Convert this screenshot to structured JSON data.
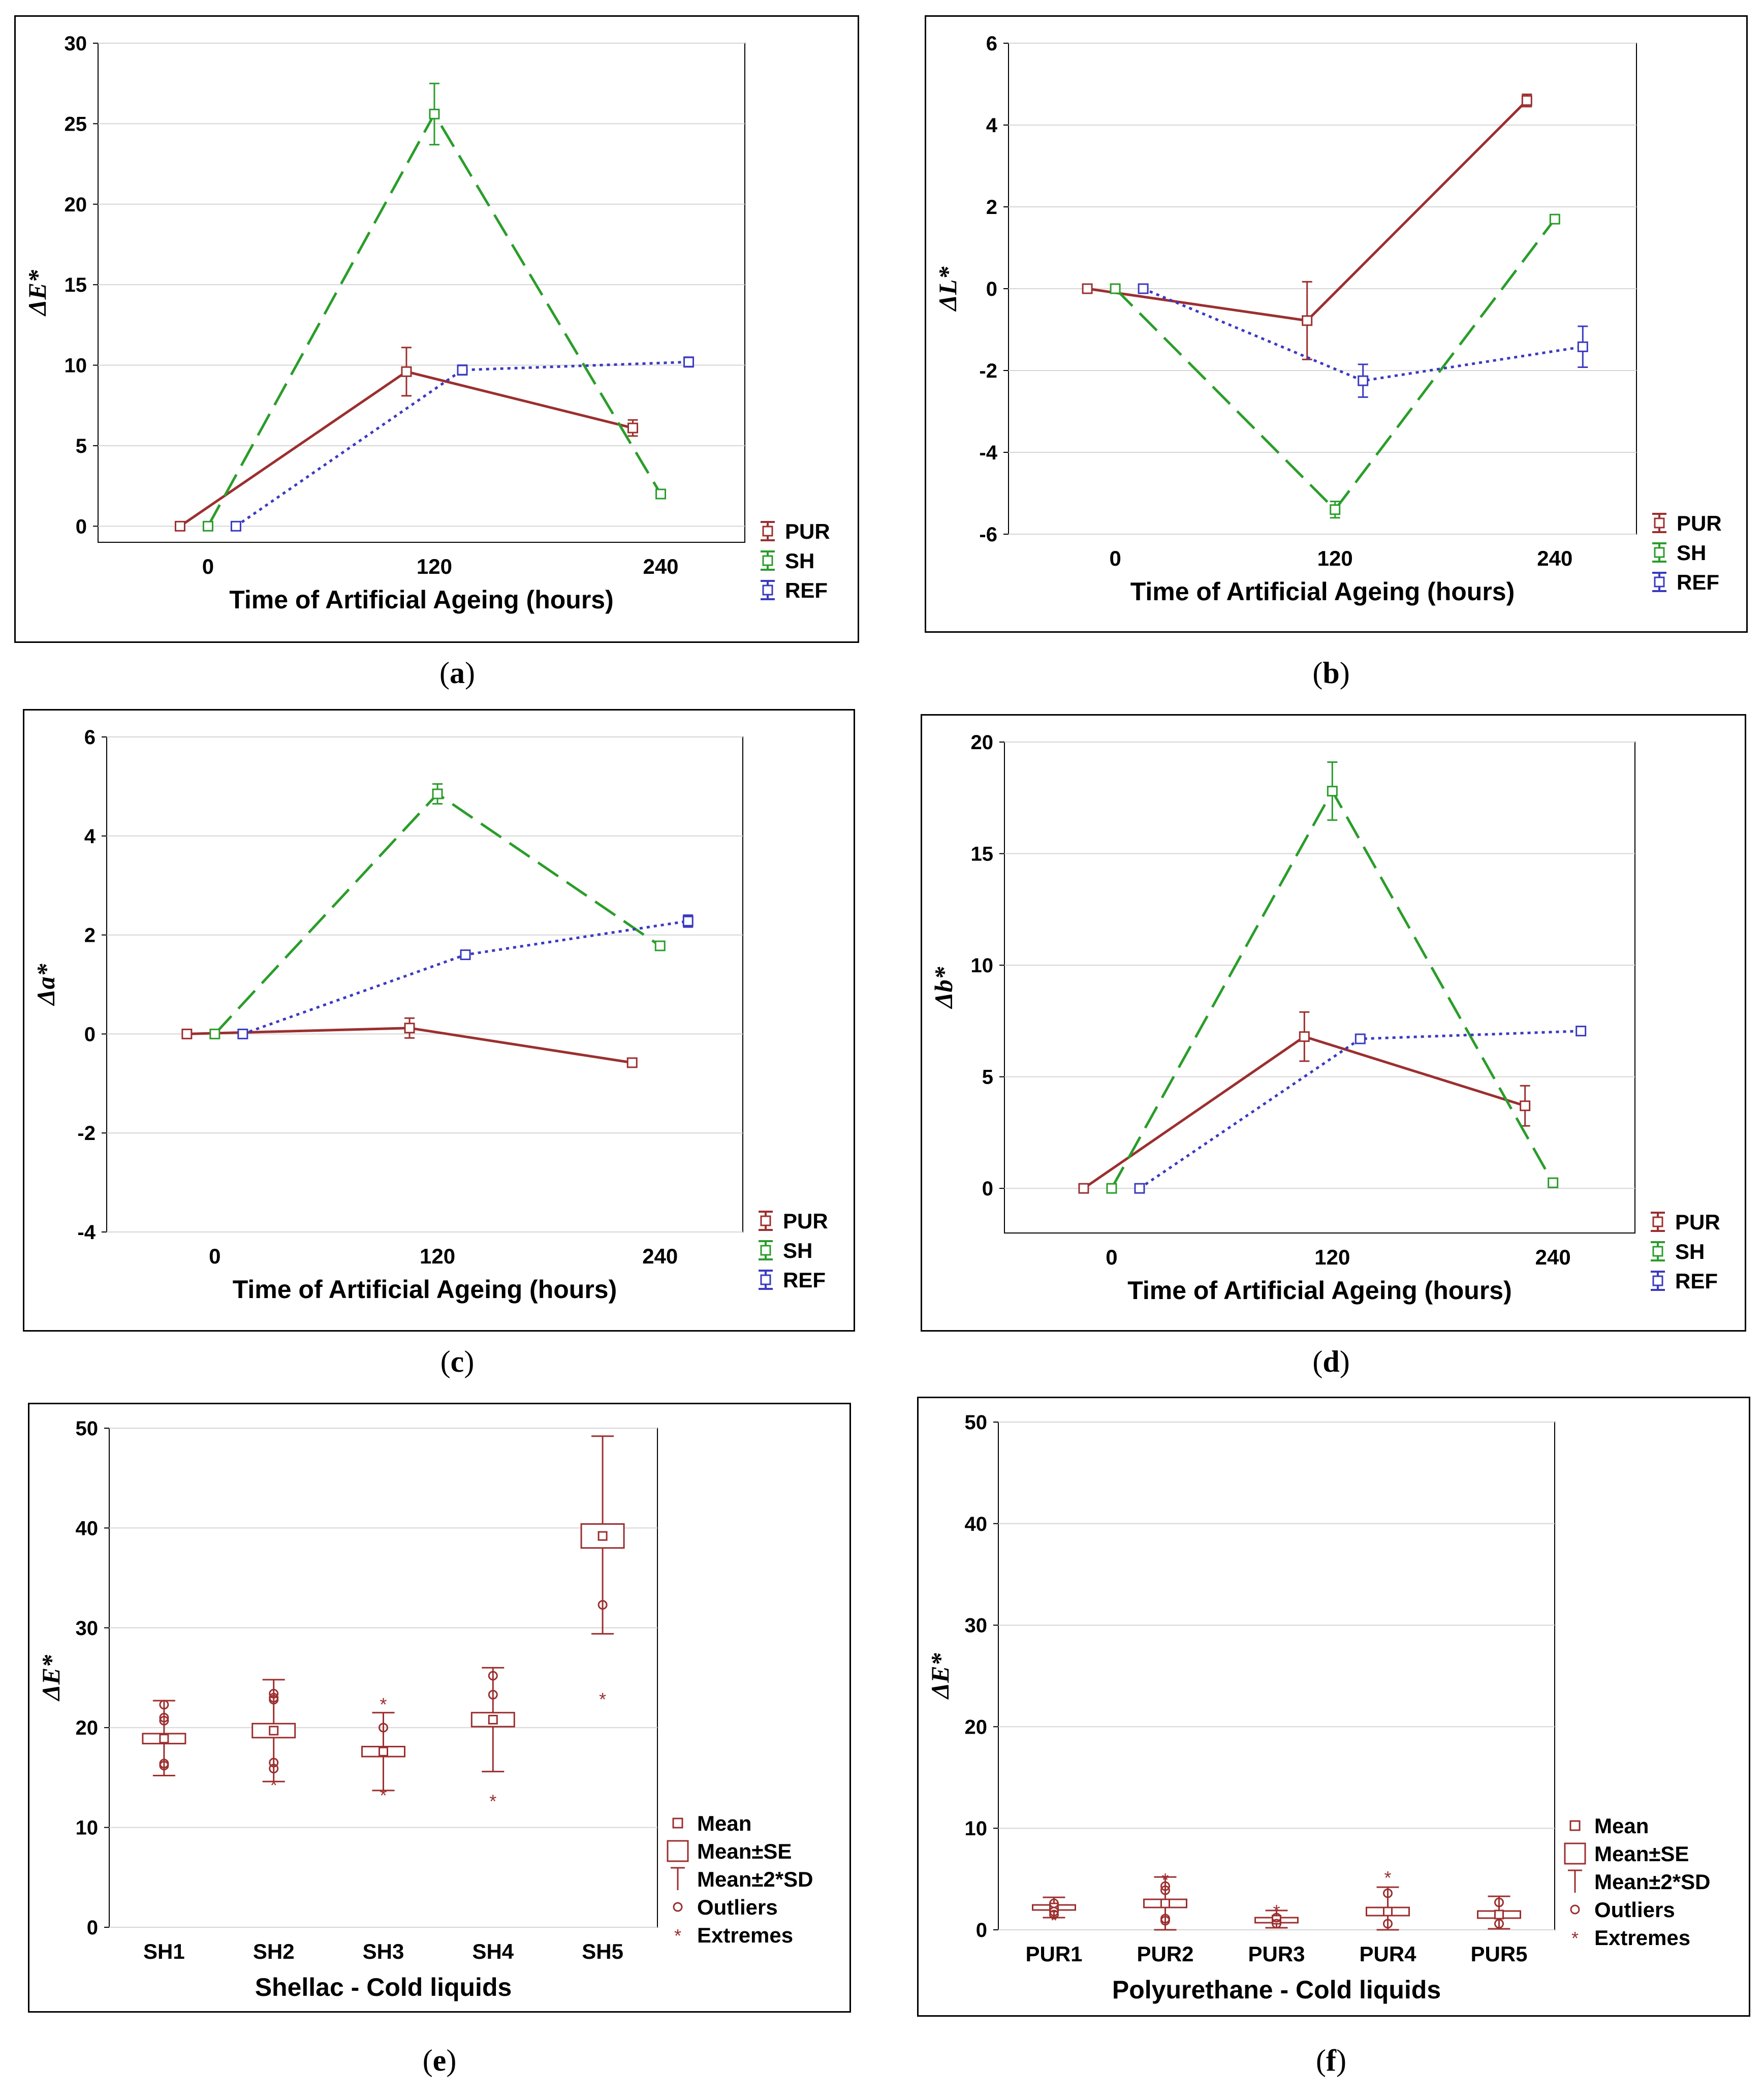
{
  "chart_data": [
    {
      "type": "line",
      "panel": "a",
      "caption_letter": "a",
      "ylabel": "ΔE*",
      "xlabel": "Time of Artificial Ageing (hours)",
      "x_ticks": [
        "0",
        "120",
        "240"
      ],
      "x": [
        0,
        120,
        240
      ],
      "y_ticks": [
        0,
        5,
        10,
        15,
        20,
        25,
        30
      ],
      "ylim": [
        -1,
        30
      ],
      "series": [
        {
          "name": "PUR",
          "color": "#9c2f2f",
          "dash": "solid",
          "values": [
            0,
            9.6,
            6.1
          ],
          "err": [
            0.15,
            1.5,
            0.5
          ]
        },
        {
          "name": "SH",
          "color": "#2a9d2a",
          "dash": "long",
          "values": [
            0,
            25.6,
            2.0
          ],
          "err": [
            0.15,
            1.9,
            0.2
          ]
        },
        {
          "name": "REF",
          "color": "#3a3ac0",
          "dash": "dot",
          "values": [
            0,
            9.7,
            10.2
          ],
          "err": [
            0.15,
            0.3,
            0.3
          ]
        }
      ]
    },
    {
      "type": "line",
      "panel": "b",
      "caption_letter": "b",
      "ylabel": "ΔL*",
      "xlabel": "Time of Artificial Ageing (hours)",
      "x_ticks": [
        "0",
        "120",
        "240"
      ],
      "x": [
        0,
        120,
        240
      ],
      "y_ticks": [
        -6,
        -4,
        -2,
        0,
        2,
        4,
        6
      ],
      "ylim": [
        -6,
        6
      ],
      "series": [
        {
          "name": "PUR",
          "color": "#9c2f2f",
          "dash": "solid",
          "values": [
            0,
            -0.78,
            4.6
          ],
          "err": [
            0.05,
            0.95,
            0.15
          ]
        },
        {
          "name": "SH",
          "color": "#2a9d2a",
          "dash": "long",
          "values": [
            0,
            -5.4,
            1.7
          ],
          "err": [
            0.05,
            0.2,
            0.1
          ]
        },
        {
          "name": "REF",
          "color": "#3a3ac0",
          "dash": "dot",
          "values": [
            0,
            -2.25,
            -1.42
          ],
          "err": [
            0.05,
            0.4,
            0.5
          ]
        }
      ]
    },
    {
      "type": "line",
      "panel": "c",
      "caption_letter": "c",
      "ylabel": "Δa*",
      "xlabel": "Time of Artificial Ageing (hours)",
      "x_ticks": [
        "0",
        "120",
        "240"
      ],
      "x": [
        0,
        120,
        240
      ],
      "y_ticks": [
        -4,
        -2,
        0,
        2,
        4,
        6
      ],
      "ylim": [
        -4,
        6
      ],
      "series": [
        {
          "name": "PUR",
          "color": "#9c2f2f",
          "dash": "solid",
          "values": [
            0,
            0.12,
            -0.58
          ],
          "err": [
            0.05,
            0.2,
            0.08
          ]
        },
        {
          "name": "SH",
          "color": "#2a9d2a",
          "dash": "long",
          "values": [
            0,
            4.85,
            1.78
          ],
          "err": [
            0.05,
            0.2,
            0.06
          ]
        },
        {
          "name": "REF",
          "color": "#3a3ac0",
          "dash": "dot",
          "values": [
            0,
            1.6,
            2.28
          ],
          "err": [
            0.05,
            0.08,
            0.12
          ]
        }
      ]
    },
    {
      "type": "line",
      "panel": "d",
      "caption_letter": "d",
      "ylabel": "Δb*",
      "xlabel": "Time of Artificial Ageing (hours)",
      "x_ticks": [
        "0",
        "120",
        "240"
      ],
      "x": [
        0,
        120,
        240
      ],
      "y_ticks": [
        0,
        5,
        10,
        15,
        20
      ],
      "ylim": [
        -2,
        20
      ],
      "series": [
        {
          "name": "PUR",
          "color": "#9c2f2f",
          "dash": "solid",
          "values": [
            0,
            6.8,
            3.7
          ],
          "err": [
            0.1,
            1.1,
            0.9
          ]
        },
        {
          "name": "SH",
          "color": "#2a9d2a",
          "dash": "long",
          "values": [
            0,
            17.8,
            0.25
          ],
          "err": [
            0.1,
            1.3,
            0.2
          ]
        },
        {
          "name": "REF",
          "color": "#3a3ac0",
          "dash": "dot",
          "values": [
            0,
            6.7,
            7.05
          ],
          "err": [
            0.1,
            0.2,
            0.2
          ]
        }
      ]
    },
    {
      "type": "box",
      "panel": "e",
      "caption_letter": "e",
      "ylabel": "ΔE*",
      "xlabel": "Shellac - Cold liquids",
      "y_ticks": [
        0,
        10,
        20,
        30,
        40,
        50
      ],
      "ylim": [
        0,
        50
      ],
      "color": "#9c2f2f",
      "categories": [
        "SH1",
        "SH2",
        "SH3",
        "SH4",
        "SH5"
      ],
      "mean": [
        18.9,
        19.7,
        17.6,
        20.8,
        39.2
      ],
      "se": [
        0.5,
        0.7,
        0.5,
        0.7,
        1.2
      ],
      "sd2_low": [
        15.2,
        14.6,
        13.7,
        15.6,
        29.4
      ],
      "sd2_high": [
        22.7,
        24.8,
        21.5,
        26.0,
        49.2
      ],
      "outliers": [
        [
          16.4,
          16.2,
          21.0,
          20.7,
          22.3
        ],
        [
          16.5,
          15.9,
          23.0,
          23.4,
          22.8
        ],
        [
          20.0
        ],
        [
          25.2,
          23.3
        ],
        [
          32.3
        ]
      ],
      "extremes": [
        [],
        [
          14.3
        ],
        [
          22.4,
          13.3
        ],
        [
          12.7
        ],
        [
          22.9
        ]
      ],
      "legend": [
        "Mean",
        "Mean±SE",
        "Mean±2*SD",
        "Outliers",
        "Extremes"
      ]
    },
    {
      "type": "box",
      "panel": "f",
      "caption_letter": "f",
      "ylabel": "ΔE*",
      "xlabel": "Polyurethane - Cold liquids",
      "y_ticks": [
        0,
        10,
        20,
        30,
        40,
        50
      ],
      "ylim": [
        0,
        50
      ],
      "color": "#9c2f2f",
      "categories": [
        "PUR1",
        "PUR2",
        "PUR3",
        "PUR4",
        "PUR5"
      ],
      "mean": [
        2.2,
        2.6,
        1.0,
        1.8,
        1.5
      ],
      "se": [
        0.25,
        0.4,
        0.2,
        0.4,
        0.35
      ],
      "sd2_low": [
        1.2,
        0.0,
        0.2,
        0.0,
        0.1
      ],
      "sd2_high": [
        3.2,
        5.2,
        1.9,
        4.2,
        3.3
      ],
      "outliers": [
        [
          1.8,
          2.6,
          1.5
        ],
        [
          3.9,
          4.3,
          1.1,
          0.9
        ],
        [
          0.6,
          1.2
        ],
        [
          3.6,
          0.6
        ],
        [
          2.7,
          0.6
        ]
      ],
      "extremes": [
        [
          1.0
        ],
        [
          5.0
        ],
        [
          1.9
        ],
        [
          5.2
        ],
        []
      ],
      "legend": [
        "Mean",
        "Mean±SE",
        "Mean±2*SD",
        "Outliers",
        "Extremes"
      ]
    }
  ]
}
